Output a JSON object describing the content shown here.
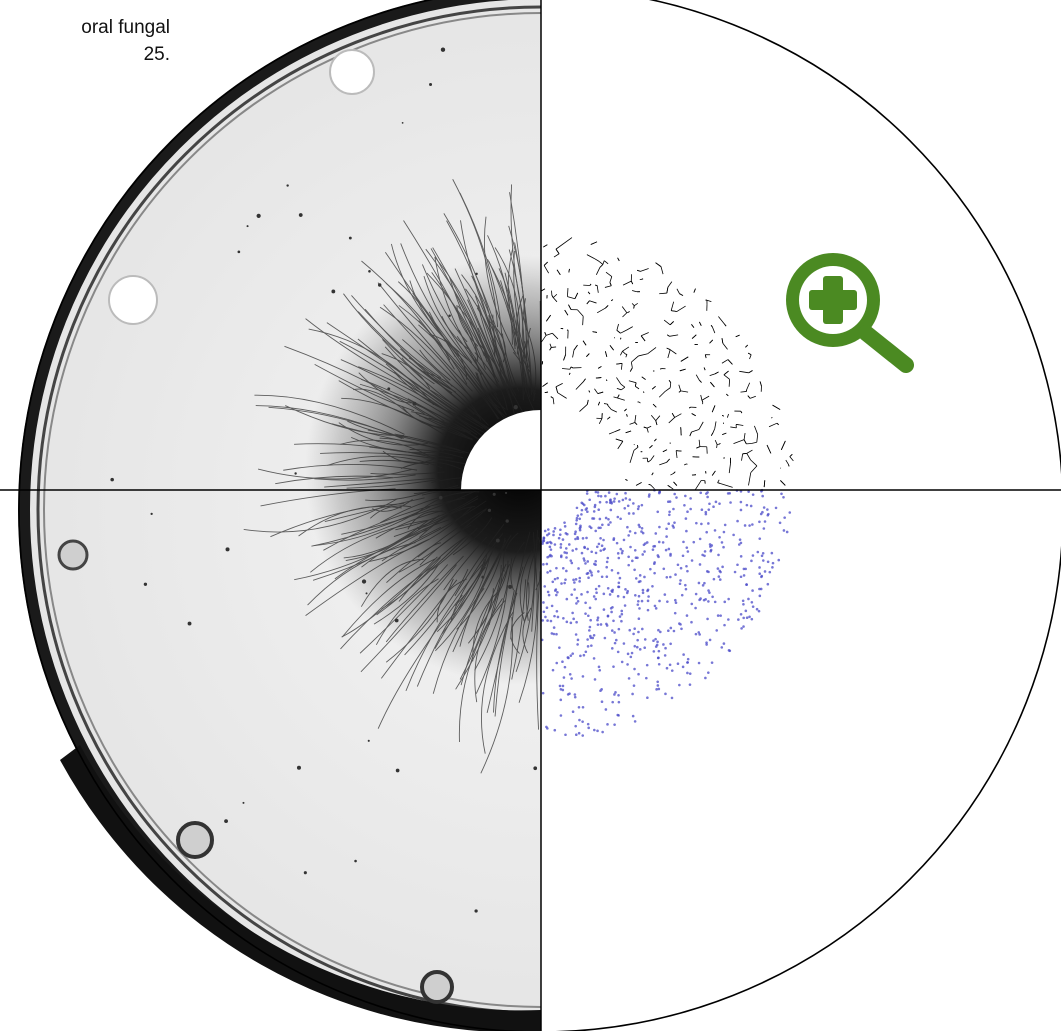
{
  "caption": {
    "line1": "oral  fungal",
    "line2": "25."
  },
  "zoom": {
    "icon": "zoom-in-icon",
    "color": "#4b8a22"
  },
  "colors": {
    "plate_background": "#eeeeee",
    "mycelium": "#111111",
    "network_nodes": "#4a4ac8",
    "outline": "#000000"
  }
}
